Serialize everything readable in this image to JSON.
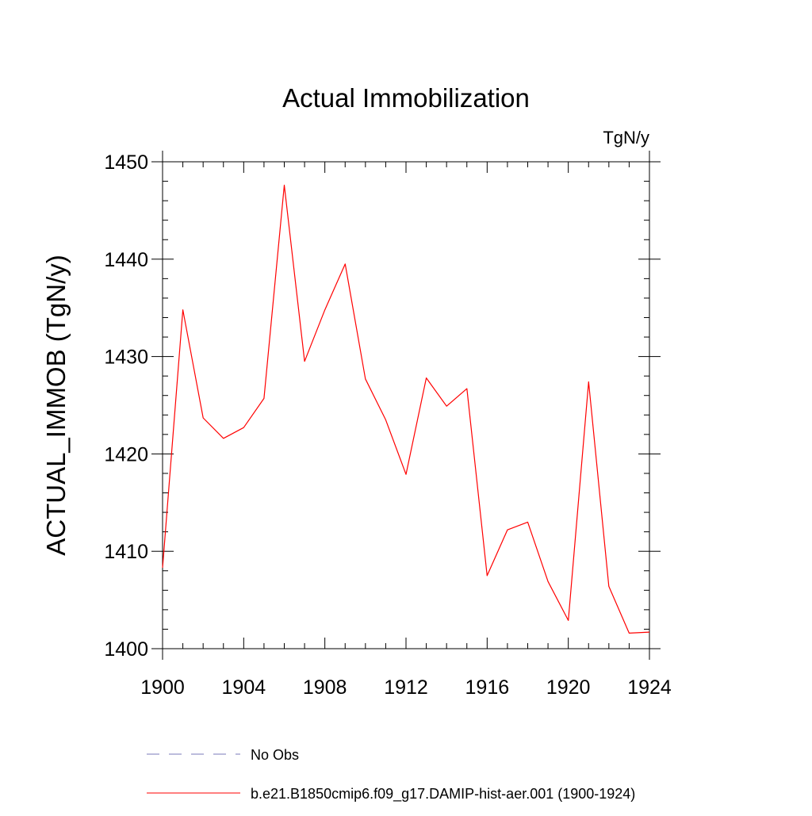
{
  "chart_data": {
    "type": "line",
    "title": "Actual Immobilization",
    "units_label": "TgN/y",
    "ylabel": "ACTUAL_IMMOB  (TgN/y)",
    "xlabel": "",
    "xlim": [
      1900,
      1924
    ],
    "ylim": [
      1400,
      1450
    ],
    "x_ticks": [
      1900,
      1904,
      1908,
      1912,
      1916,
      1920,
      1924
    ],
    "x_tick_labels": [
      "1900",
      "1904",
      "1908",
      "1912",
      "1916",
      "1920",
      "1924"
    ],
    "y_ticks": [
      1400,
      1410,
      1420,
      1430,
      1440,
      1450
    ],
    "y_tick_labels": [
      "1400",
      "1410",
      "1420",
      "1430",
      "1440",
      "1450"
    ],
    "grid": false,
    "legend_position": "bottom",
    "legend": [
      {
        "label": "No Obs",
        "color": "#7a7ab8",
        "style": "dashed"
      },
      {
        "label": "b.e21.B1850cmip6.f09_g17.DAMIP-hist-aer.001 (1900-1924)",
        "color": "#ff0000",
        "style": "solid"
      }
    ],
    "series": [
      {
        "name": "b.e21.B1850cmip6.f09_g17.DAMIP-hist-aer.001 (1900-1924)",
        "color": "#ff0000",
        "x": [
          1900,
          1901,
          1902,
          1903,
          1904,
          1905,
          1906,
          1907,
          1908,
          1909,
          1910,
          1911,
          1912,
          1913,
          1914,
          1915,
          1916,
          1917,
          1918,
          1919,
          1920,
          1921,
          1922,
          1923,
          1924
        ],
        "values": [
          1408.3,
          1434.8,
          1423.7,
          1421.6,
          1422.7,
          1425.7,
          1447.6,
          1429.5,
          1434.8,
          1439.5,
          1427.7,
          1423.5,
          1417.9,
          1427.8,
          1424.9,
          1426.7,
          1407.5,
          1412.2,
          1413.0,
          1406.9,
          1402.9,
          1427.4,
          1406.4,
          1401.6,
          1401.7
        ]
      }
    ]
  }
}
